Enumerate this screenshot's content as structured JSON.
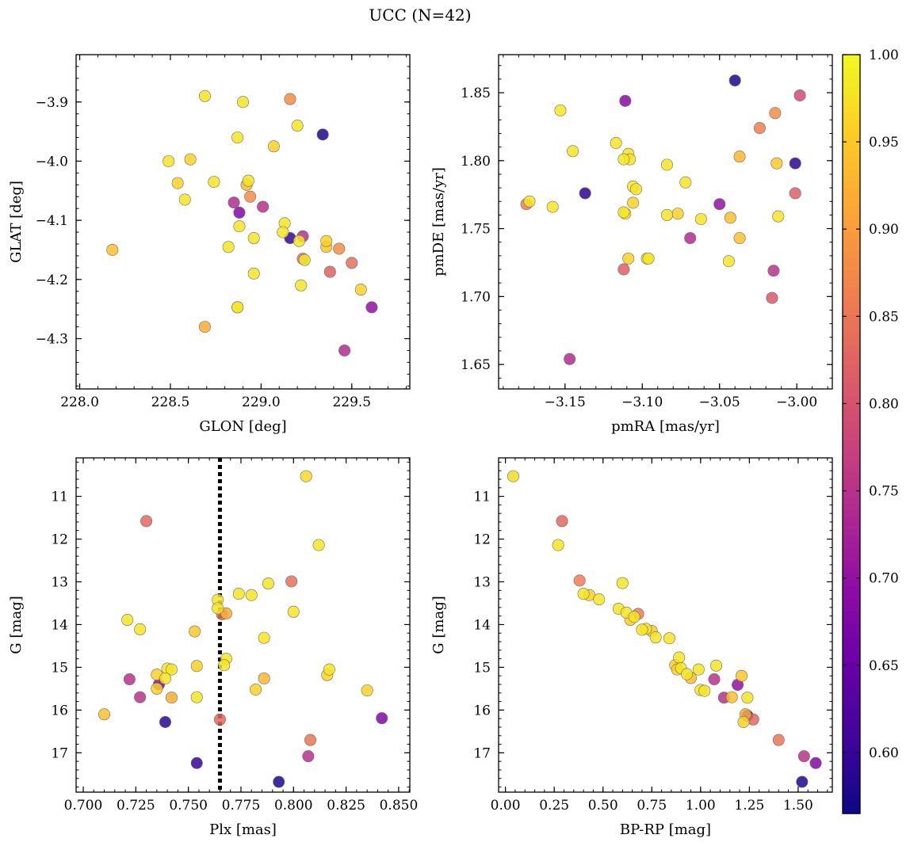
{
  "figure": {
    "title": "UCC (N=42)"
  },
  "colorbar": {
    "ticks": [
      "0.60",
      "0.65",
      "0.70",
      "0.75",
      "0.80",
      "0.85",
      "0.90",
      "0.95",
      "1.00"
    ],
    "range": [
      0.565,
      1.0
    ],
    "colormap": "plasma"
  },
  "chart_data": [
    {
      "type": "scatter",
      "id": "glon-glat",
      "xlabel": "GLON [deg]",
      "ylabel": "GLAT [deg]",
      "xlim": [
        227.98,
        229.82
      ],
      "ylim": [
        -4.385,
        -3.82
      ],
      "xticks": [
        228.0,
        228.5,
        229.0,
        229.5
      ],
      "xtick_labels": [
        "228.0",
        "228.5",
        "229.0",
        "229.5"
      ],
      "yticks": [
        -3.9,
        -4.0,
        -4.1,
        -4.2,
        -4.3
      ],
      "ytick_labels": [
        "−3.9",
        "−4.0",
        "−4.1",
        "−4.2",
        "−4.3"
      ],
      "xminor": 0.1,
      "yminor": 0.02,
      "x": [
        228.69,
        228.9,
        229.16,
        229.2,
        229.34,
        228.87,
        229.07,
        228.49,
        228.61,
        228.54,
        228.74,
        228.93,
        228.92,
        228.94,
        228.58,
        228.85,
        229.01,
        228.88,
        229.13,
        229.12,
        229.23,
        228.96,
        229.16,
        229.21,
        228.88,
        228.82,
        229.36,
        229.36,
        229.43,
        229.23,
        229.24,
        229.5,
        228.96,
        229.38,
        229.22,
        228.18,
        229.55,
        228.87,
        229.61,
        228.69,
        229.46,
        228.87
      ],
      "y": [
        -3.89,
        -3.9,
        -3.895,
        -3.94,
        -3.955,
        -3.96,
        -3.975,
        -4.0,
        -3.997,
        -4.037,
        -4.035,
        -4.033,
        -4.04,
        -4.06,
        -4.065,
        -4.07,
        -4.077,
        -4.087,
        -4.105,
        -4.12,
        -4.127,
        -4.13,
        -4.13,
        -4.135,
        -4.11,
        -4.145,
        -4.135,
        -4.145,
        -4.148,
        -4.165,
        -4.167,
        -4.172,
        -4.19,
        -4.187,
        -4.21,
        -4.15,
        -4.217,
        -4.247,
        -4.247,
        -4.28,
        -4.32,
        -4.247
      ],
      "c": [
        0.98,
        0.98,
        0.88,
        0.98,
        0.58,
        0.98,
        0.96,
        0.98,
        0.96,
        0.96,
        0.98,
        0.98,
        0.93,
        0.88,
        0.98,
        0.74,
        0.75,
        0.68,
        0.98,
        0.98,
        0.75,
        0.98,
        0.6,
        0.98,
        0.98,
        0.98,
        0.96,
        0.95,
        0.88,
        0.84,
        0.98,
        0.84,
        0.98,
        0.82,
        0.98,
        0.94,
        0.96,
        0.97,
        0.7,
        0.92,
        0.74,
        0.98
      ]
    },
    {
      "type": "scatter",
      "id": "pmra-pmde",
      "xlabel": "pmRA [mas/yr]",
      "ylabel": "pmDE [mas/yr]",
      "xlim": [
        -3.193,
        -2.977
      ],
      "ylim": [
        1.632,
        1.878
      ],
      "xticks": [
        -3.15,
        -3.1,
        -3.05,
        -3.0
      ],
      "xtick_labels": [
        "−3.15",
        "−3.10",
        "−3.05",
        "−3.00"
      ],
      "yticks": [
        1.65,
        1.7,
        1.75,
        1.8,
        1.85
      ],
      "ytick_labels": [
        "1.65",
        "1.70",
        "1.75",
        "1.80",
        "1.85"
      ],
      "xminor": 0.01,
      "yminor": 0.01,
      "x": [
        -3.04,
        -3.111,
        -2.998,
        -3.153,
        -3.014,
        -3.024,
        -3.145,
        -3.117,
        -3.037,
        -3.109,
        -3.013,
        -3.001,
        -3.108,
        -3.112,
        -3.084,
        -3.106,
        -3.104,
        -3.072,
        -3.137,
        -3.001,
        -3.173,
        -3.158,
        -3.106,
        -3.05,
        -3.111,
        -3.112,
        -3.077,
        -3.062,
        -3.084,
        -3.043,
        -3.012,
        -3.037,
        -3.109,
        -3.069,
        -3.097,
        -3.044,
        -3.096,
        -3.112,
        -3.015,
        -3.016,
        -3.147,
        -3.175
      ],
      "y": [
        1.859,
        1.844,
        1.848,
        1.837,
        1.835,
        1.824,
        1.807,
        1.813,
        1.803,
        1.805,
        1.798,
        1.798,
        1.801,
        1.801,
        1.797,
        1.781,
        1.779,
        1.784,
        1.776,
        1.776,
        1.77,
        1.766,
        1.769,
        1.768,
        1.761,
        1.762,
        1.761,
        1.757,
        1.76,
        1.758,
        1.759,
        1.743,
        1.728,
        1.743,
        1.728,
        1.726,
        1.728,
        1.72,
        1.719,
        1.699,
        1.654,
        1.768
      ],
      "c": [
        0.58,
        0.69,
        0.79,
        0.98,
        0.88,
        0.86,
        0.98,
        0.98,
        0.93,
        0.98,
        0.95,
        0.59,
        0.98,
        0.98,
        0.98,
        0.98,
        0.98,
        0.98,
        0.59,
        0.82,
        0.98,
        0.98,
        0.96,
        0.7,
        0.98,
        0.98,
        0.96,
        0.98,
        0.98,
        0.94,
        0.98,
        0.94,
        0.96,
        0.74,
        0.98,
        0.98,
        0.98,
        0.82,
        0.75,
        0.81,
        0.74,
        0.86
      ]
    },
    {
      "type": "scatter",
      "id": "plx-g",
      "xlabel": "Plx [mas]",
      "ylabel": "G [mag]",
      "xlim": [
        0.6966,
        0.8553
      ],
      "ylim": [
        17.92,
        10.1
      ],
      "y_inverted": true,
      "xticks": [
        0.7,
        0.725,
        0.75,
        0.775,
        0.8,
        0.825,
        0.85
      ],
      "xtick_labels": [
        "0.700",
        "0.725",
        "0.750",
        "0.775",
        "0.800",
        "0.825",
        "0.850"
      ],
      "yticks": [
        11,
        12,
        13,
        14,
        15,
        16,
        17
      ],
      "ytick_labels": [
        "11",
        "12",
        "13",
        "14",
        "15",
        "16",
        "17"
      ],
      "xminor": 0.005,
      "yminor": 0.2,
      "vline": 0.765,
      "x": [
        0.806,
        0.73,
        0.812,
        0.799,
        0.788,
        0.774,
        0.78,
        0.764,
        0.764,
        0.766,
        0.768,
        0.8,
        0.721,
        0.727,
        0.753,
        0.786,
        0.754,
        0.768,
        0.74,
        0.742,
        0.739,
        0.735,
        0.722,
        0.736,
        0.735,
        0.742,
        0.727,
        0.754,
        0.739,
        0.817,
        0.816,
        0.786,
        0.782,
        0.835,
        0.71,
        0.765,
        0.842,
        0.808,
        0.807,
        0.754,
        0.793,
        0.767
      ],
      "y": [
        10.53,
        11.58,
        12.14,
        12.99,
        13.04,
        13.28,
        13.31,
        13.42,
        13.62,
        13.76,
        13.74,
        13.7,
        13.89,
        14.11,
        14.16,
        14.31,
        14.97,
        14.8,
        15.03,
        15.05,
        15.26,
        15.17,
        15.28,
        15.4,
        15.5,
        15.71,
        15.7,
        15.7,
        16.28,
        15.05,
        15.18,
        15.26,
        15.52,
        15.54,
        16.1,
        16.22,
        16.19,
        16.7,
        17.08,
        17.24,
        17.68,
        14.95
      ],
      "c": [
        0.97,
        0.83,
        0.98,
        0.84,
        0.98,
        0.98,
        0.98,
        0.98,
        0.98,
        0.84,
        0.92,
        0.98,
        0.98,
        0.98,
        0.95,
        0.98,
        0.96,
        0.98,
        0.98,
        0.98,
        0.98,
        0.96,
        0.75,
        0.68,
        0.96,
        0.92,
        0.75,
        0.98,
        0.59,
        0.98,
        0.96,
        0.93,
        0.96,
        0.96,
        0.94,
        0.83,
        0.68,
        0.85,
        0.75,
        0.6,
        0.58,
        0.98
      ]
    },
    {
      "type": "scatter",
      "id": "bprp-g",
      "xlabel": "BP-RP [mag]",
      "ylabel": "G [mag]",
      "xlim": [
        -0.035,
        1.675
      ],
      "ylim": [
        17.92,
        10.1
      ],
      "y_inverted": true,
      "xticks": [
        0.0,
        0.25,
        0.5,
        0.75,
        1.0,
        1.25,
        1.5
      ],
      "xtick_labels": [
        "0.00",
        "0.25",
        "0.50",
        "0.75",
        "1.00",
        "1.25",
        "1.50"
      ],
      "yticks": [
        11,
        12,
        13,
        14,
        15,
        16,
        17
      ],
      "ytick_labels": [
        "11",
        "12",
        "13",
        "14",
        "15",
        "16",
        "17"
      ],
      "xminor": 0.05,
      "yminor": 0.2,
      "x": [
        0.04,
        0.29,
        0.27,
        0.38,
        0.4,
        0.43,
        0.48,
        0.6,
        0.58,
        0.62,
        0.64,
        0.68,
        0.72,
        0.75,
        0.77,
        0.84,
        0.89,
        0.87,
        0.9,
        0.88,
        0.93,
        0.95,
        0.99,
        1.0,
        1.02,
        1.07,
        1.08,
        1.12,
        1.16,
        1.19,
        1.21,
        1.24,
        1.23,
        1.24,
        1.27,
        1.22,
        1.4,
        1.53,
        1.59,
        1.52,
        0.7,
        0.66
      ],
      "y": [
        10.53,
        11.58,
        12.14,
        12.97,
        13.28,
        13.31,
        13.41,
        13.03,
        13.63,
        13.72,
        13.89,
        13.75,
        14.1,
        14.15,
        14.3,
        14.32,
        14.77,
        14.95,
        15.02,
        15.05,
        15.16,
        15.25,
        15.05,
        15.53,
        15.55,
        15.28,
        14.96,
        15.71,
        15.7,
        15.41,
        15.2,
        15.71,
        16.1,
        16.13,
        16.22,
        16.28,
        16.7,
        17.08,
        17.24,
        17.68,
        14.12,
        13.82
      ],
      "c": [
        0.97,
        0.83,
        0.98,
        0.86,
        0.98,
        0.96,
        0.98,
        0.98,
        0.98,
        0.98,
        0.96,
        0.86,
        0.98,
        0.95,
        0.98,
        0.98,
        0.98,
        0.96,
        0.98,
        0.96,
        0.98,
        0.94,
        0.98,
        0.98,
        0.98,
        0.75,
        0.98,
        0.75,
        0.94,
        0.7,
        0.95,
        0.98,
        0.92,
        0.6,
        0.83,
        0.96,
        0.85,
        0.75,
        0.68,
        0.58,
        0.98,
        0.98
      ]
    }
  ]
}
